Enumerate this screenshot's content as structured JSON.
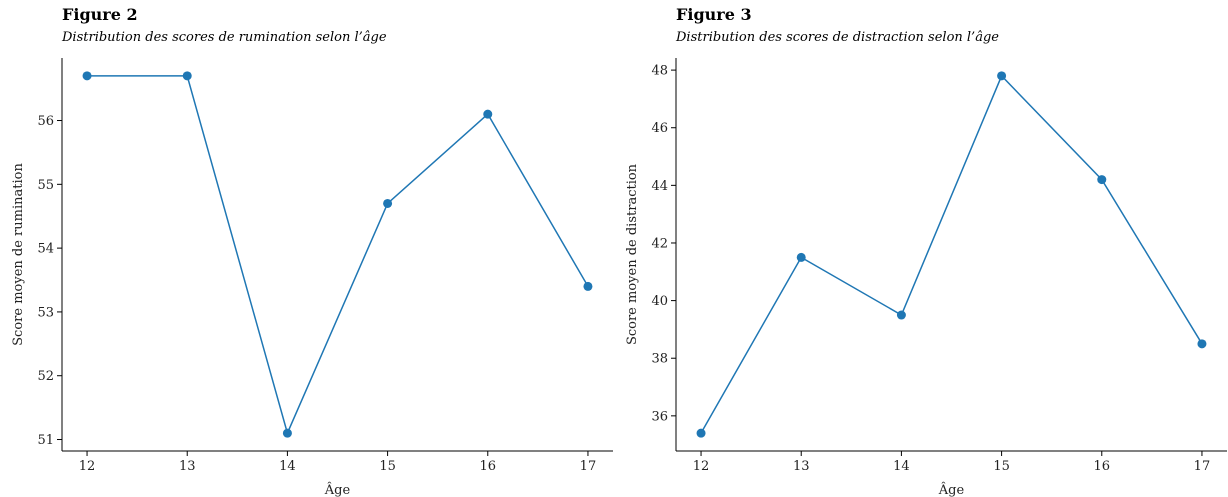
{
  "colors": {
    "series": "#1f77b4",
    "axis": "#000000"
  },
  "chart_data": [
    {
      "type": "line",
      "figure_label": "Figure 2",
      "caption": "Distribution des scores de rumination selon l’âge",
      "xlabel": "Âge",
      "ylabel": "Score moyen de rumination",
      "x": [
        12,
        13,
        14,
        15,
        16,
        17
      ],
      "x_ticks": [
        "12",
        "13",
        "14",
        "15",
        "16",
        "17"
      ],
      "y": [
        56.7,
        56.7,
        51.1,
        54.7,
        56.1,
        53.4
      ],
      "y_ticks": [
        "51",
        "52",
        "53",
        "54",
        "55",
        "56"
      ],
      "xlim": [
        11.75,
        17.25
      ],
      "ylim": [
        50.82,
        56.98
      ],
      "grid": false,
      "markers": true
    },
    {
      "type": "line",
      "figure_label": "Figure 3",
      "caption": "Distribution des scores de distraction selon l’âge",
      "xlabel": "Âge",
      "ylabel": "Score moyen de distraction",
      "x": [
        12,
        13,
        14,
        15,
        16,
        17
      ],
      "x_ticks": [
        "12",
        "13",
        "14",
        "15",
        "16",
        "17"
      ],
      "y": [
        35.4,
        41.5,
        39.5,
        47.8,
        44.2,
        38.5
      ],
      "y_ticks": [
        "36",
        "38",
        "40",
        "42",
        "44",
        "46",
        "48"
      ],
      "xlim": [
        11.75,
        17.25
      ],
      "ylim": [
        34.78,
        48.42
      ],
      "grid": false,
      "markers": true
    }
  ]
}
